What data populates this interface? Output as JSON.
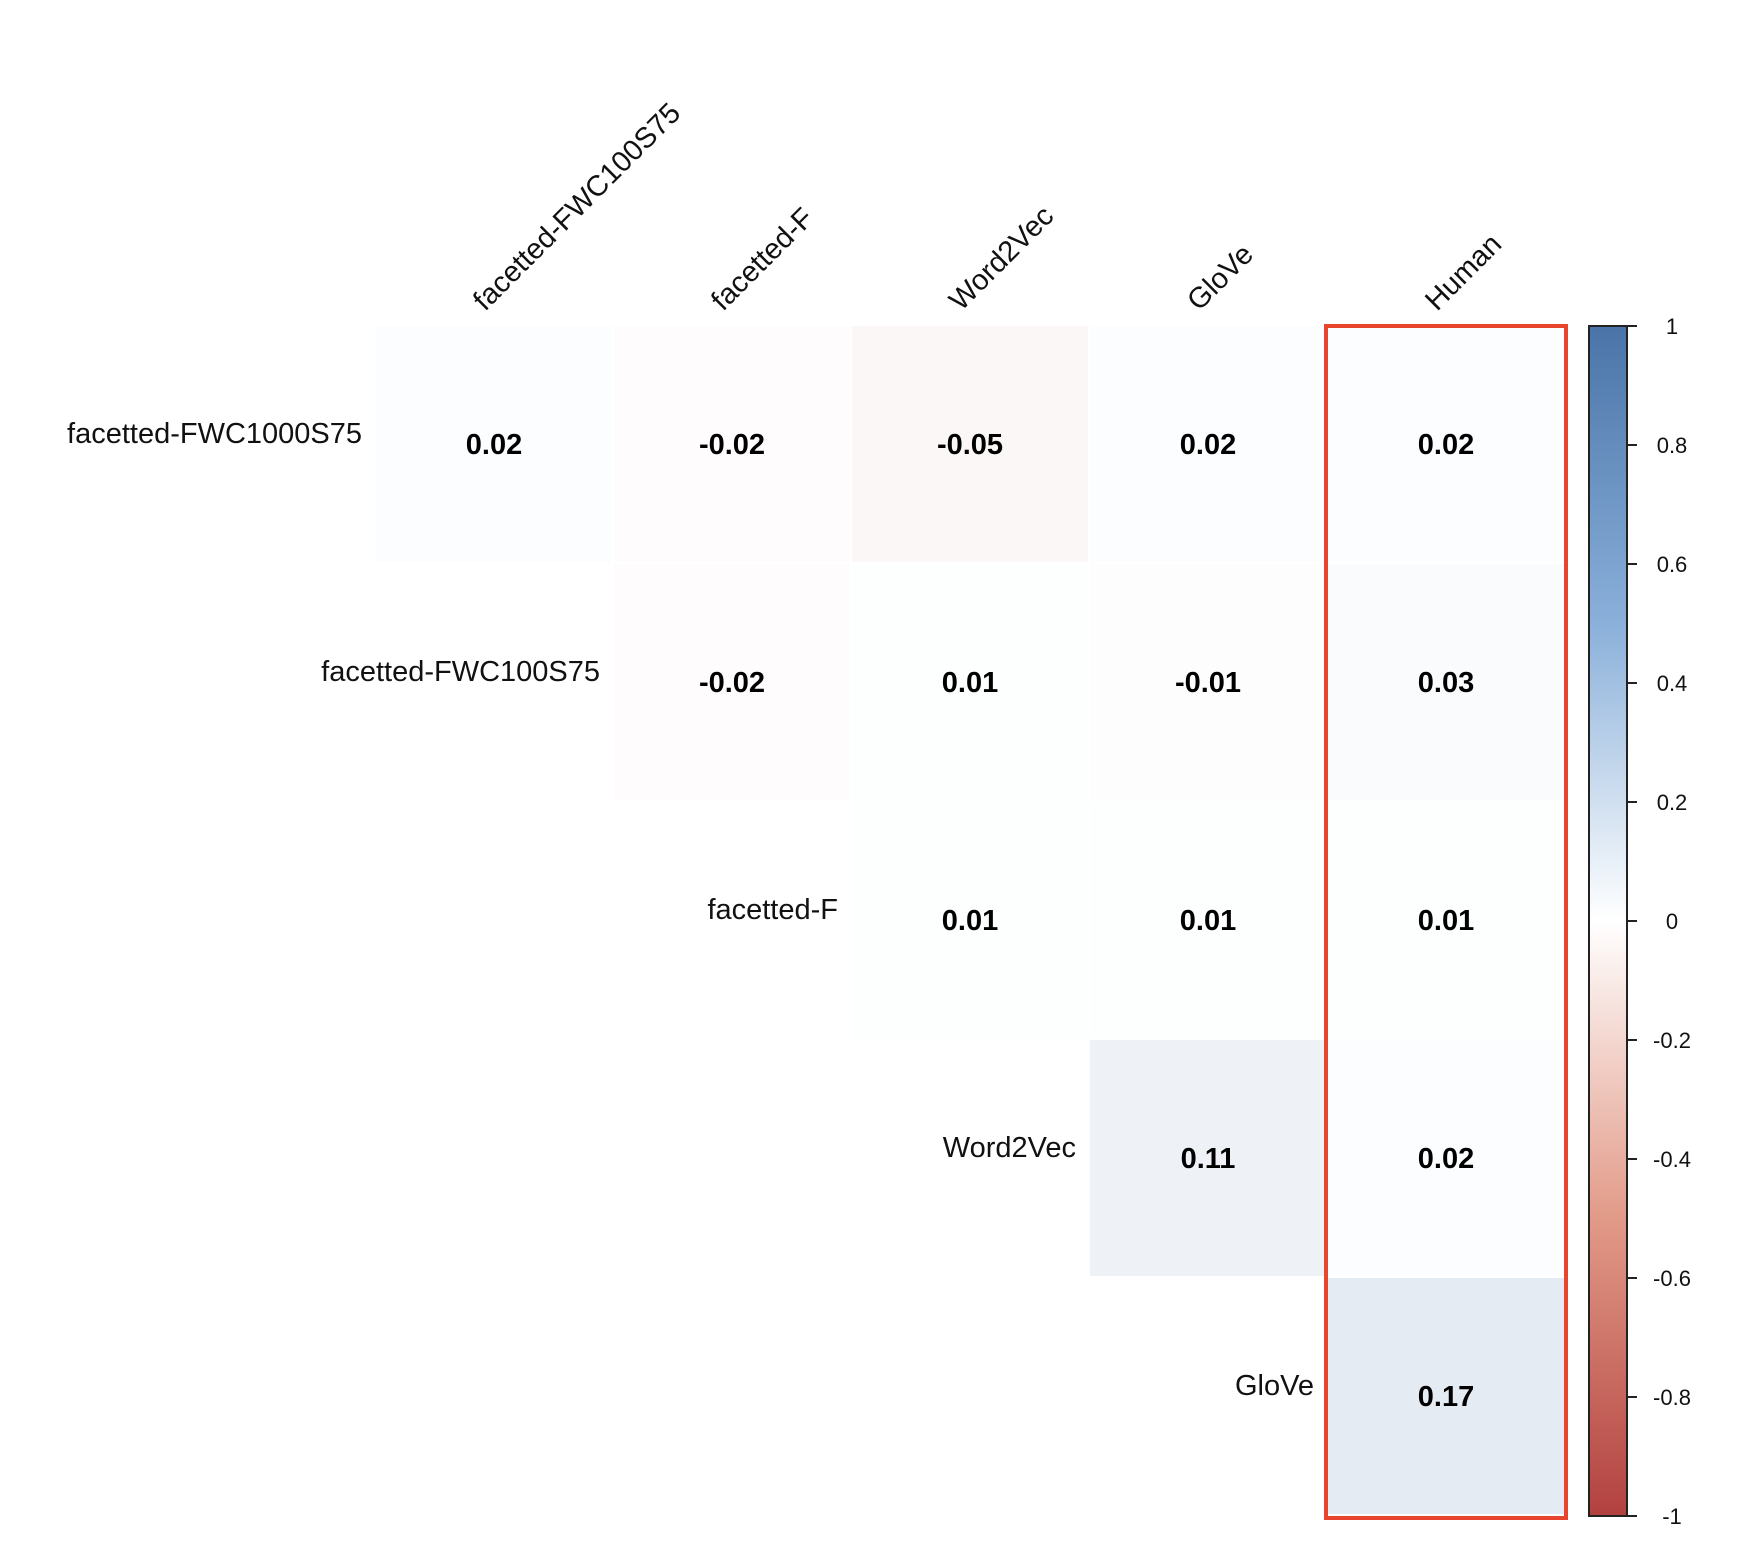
{
  "chart_data": {
    "type": "heatmap",
    "title": "",
    "column_labels": [
      "facetted-FWC100S75",
      "facetted-F",
      "Word2Vec",
      "GloVe",
      "Human"
    ],
    "row_labels": [
      "facetted-FWC1000S75",
      "facetted-FWC100S75",
      "facetted-F",
      "Word2Vec",
      "GloVe"
    ],
    "cells": [
      {
        "row": 0,
        "col": 0,
        "value": 0.02,
        "text": "0.02"
      },
      {
        "row": 0,
        "col": 1,
        "value": -0.02,
        "text": "-0.02"
      },
      {
        "row": 0,
        "col": 2,
        "value": -0.05,
        "text": "-0.05"
      },
      {
        "row": 0,
        "col": 3,
        "value": 0.02,
        "text": "0.02"
      },
      {
        "row": 0,
        "col": 4,
        "value": 0.02,
        "text": "0.02"
      },
      {
        "row": 1,
        "col": 1,
        "value": -0.02,
        "text": "-0.02"
      },
      {
        "row": 1,
        "col": 2,
        "value": 0.01,
        "text": "0.01"
      },
      {
        "row": 1,
        "col": 3,
        "value": -0.01,
        "text": "-0.01"
      },
      {
        "row": 1,
        "col": 4,
        "value": 0.03,
        "text": "0.03"
      },
      {
        "row": 2,
        "col": 2,
        "value": 0.01,
        "text": "0.01"
      },
      {
        "row": 2,
        "col": 3,
        "value": 0.01,
        "text": "0.01"
      },
      {
        "row": 2,
        "col": 4,
        "value": 0.01,
        "text": "0.01"
      },
      {
        "row": 3,
        "col": 3,
        "value": 0.11,
        "text": "0.11"
      },
      {
        "row": 3,
        "col": 4,
        "value": 0.02,
        "text": "0.02"
      },
      {
        "row": 4,
        "col": 4,
        "value": 0.17,
        "text": "0.17"
      }
    ],
    "colorbar": {
      "range": [
        -1,
        1
      ],
      "ticks": [
        "1",
        "0.8",
        "0.6",
        "0.4",
        "0.2",
        "0",
        "-0.2",
        "-0.4",
        "-0.6",
        "-0.8",
        "-1"
      ],
      "colors": {
        "negative": "#b2413f",
        "neutral": "#ffffff",
        "positive": "#4a74a8"
      }
    },
    "highlight": {
      "column": 4,
      "color": "#e8452f"
    },
    "legend_position": "right"
  }
}
